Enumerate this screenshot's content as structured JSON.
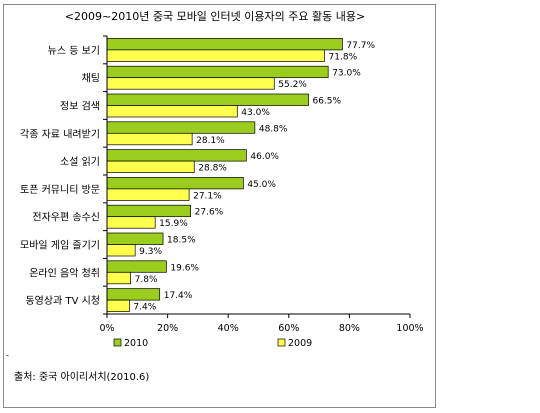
{
  "chart_data": {
    "type": "bar",
    "orientation": "horizontal",
    "title": "<2009~2010년 중국 모바일 인터넷 이용자의 주요 활동 내용>",
    "categories": [
      "뉴스 등 보기",
      "채팅",
      "정보 검색",
      "각종 자료 내려받기",
      "소설 읽기",
      "토픈 커뮤니티 방문",
      "전자우편 송수신",
      "모바일 게임 즐기기",
      "온라인 음악 청취",
      "동영상과 TV 시청"
    ],
    "series": [
      {
        "name": "2010",
        "color": "#9acd1e",
        "values": [
          77.7,
          73.0,
          66.5,
          48.8,
          46.0,
          45.0,
          27.6,
          18.5,
          19.6,
          17.4
        ],
        "labels": [
          "77.7%",
          "73.0%",
          "66.5%",
          "48.8%",
          "46.0%",
          "45.0%",
          "27.6%",
          "18.5%",
          "19.6%",
          "17.4%"
        ]
      },
      {
        "name": "2009",
        "color": "#ffff4d",
        "values": [
          71.8,
          55.2,
          43.0,
          28.1,
          28.8,
          27.1,
          15.9,
          9.3,
          7.8,
          7.4
        ],
        "labels": [
          "71.8%",
          "55.2%",
          "43.0%",
          "28.1%",
          "28.8%",
          "27.1%",
          "15.9%",
          "9.3%",
          "7.8%",
          "7.4%"
        ]
      }
    ],
    "xlim": [
      0,
      100
    ],
    "xticks": [
      0,
      20,
      40,
      60,
      80,
      100
    ],
    "xtick_labels": [
      "0%",
      "20%",
      "40%",
      "60%",
      "80%",
      "100%"
    ],
    "grid": false,
    "legend_position": "bottom"
  },
  "source": "출처: 중국 아이리서치(2010.6)",
  "footnote_mark": "-"
}
